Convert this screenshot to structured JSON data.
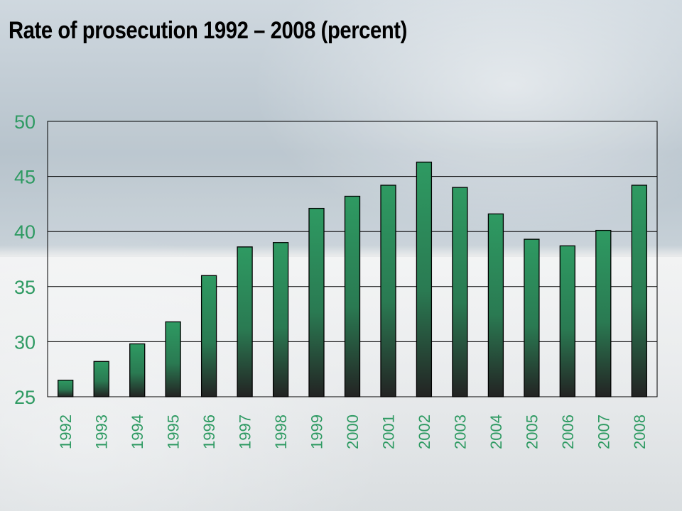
{
  "title": "Rate of prosecution 1992 – 2008 (percent)",
  "chart_data": {
    "type": "bar",
    "title": "Rate of prosecution 1992 – 2008 (percent)",
    "xlabel": "",
    "ylabel": "",
    "categories": [
      "1992",
      "1993",
      "1994",
      "1995",
      "1996",
      "1997",
      "1998",
      "1999",
      "2000",
      "2001",
      "2002",
      "2003",
      "2004",
      "2005",
      "2006",
      "2007",
      "2008"
    ],
    "values": [
      26.5,
      28.2,
      29.8,
      31.8,
      36.0,
      38.6,
      39.0,
      42.1,
      43.2,
      44.2,
      46.3,
      44.0,
      41.6,
      39.3,
      38.7,
      40.1,
      44.2
    ],
    "ylim": [
      25,
      50
    ],
    "yticks": [
      "25",
      "30",
      "35",
      "40",
      "45",
      "50"
    ],
    "grid": true,
    "legend": "none",
    "colors": {
      "bar_top": "#2e9a62",
      "bar_bottom": "#222222",
      "tick_text": "#2e9a62",
      "gridline": "#000000"
    }
  }
}
